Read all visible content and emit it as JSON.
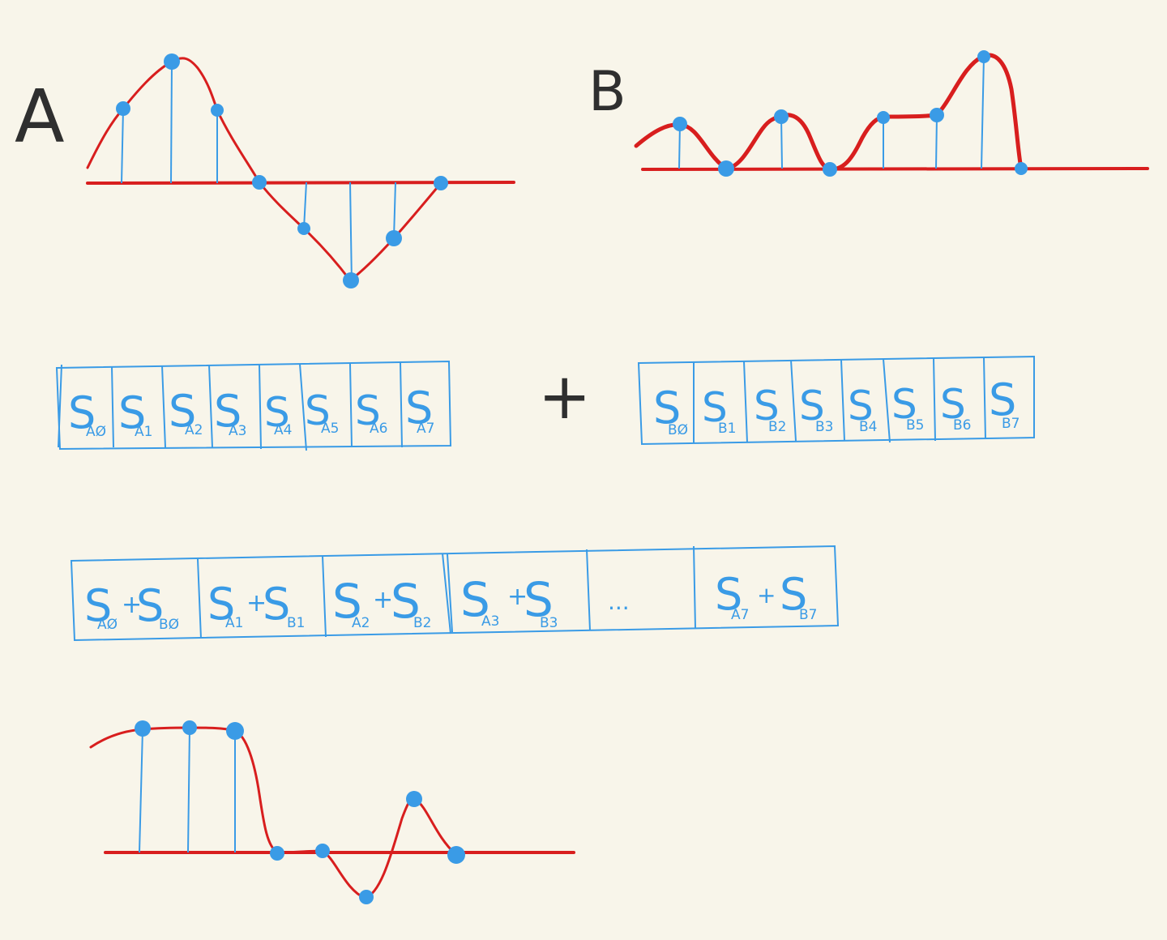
{
  "labels": {
    "signal_a": "A",
    "signal_b": "B",
    "plus": "+",
    "ellipsis": "..."
  },
  "colors": {
    "background": "#f8f5ea",
    "curve": "#d81e1e",
    "samples": "#3a9be6",
    "ink": "#2f2f2f"
  },
  "array_a": [
    {
      "main": "S",
      "sub": "AØ"
    },
    {
      "main": "S",
      "sub": "A1"
    },
    {
      "main": "S",
      "sub": "A2"
    },
    {
      "main": "S",
      "sub": "A3"
    },
    {
      "main": "S",
      "sub": "A4"
    },
    {
      "main": "S",
      "sub": "A5"
    },
    {
      "main": "S",
      "sub": "A6"
    },
    {
      "main": "S",
      "sub": "A7"
    }
  ],
  "array_b": [
    {
      "main": "S",
      "sub": "BØ"
    },
    {
      "main": "S",
      "sub": "B1"
    },
    {
      "main": "S",
      "sub": "B2"
    },
    {
      "main": "S",
      "sub": "B3"
    },
    {
      "main": "S",
      "sub": "B4"
    },
    {
      "main": "S",
      "sub": "B5"
    },
    {
      "main": "S",
      "sub": "B6"
    },
    {
      "main": "S",
      "sub": "B7"
    }
  ],
  "array_sum": [
    {
      "a": "S",
      "a_sub": "AØ",
      "op": "+",
      "b": "S",
      "b_sub": "BØ"
    },
    {
      "a": "S",
      "a_sub": "A1",
      "op": "+",
      "b": "S",
      "b_sub": "B1"
    },
    {
      "a": "S",
      "a_sub": "A2",
      "op": "+",
      "b": "S",
      "b_sub": "B2"
    },
    {
      "a": "S",
      "a_sub": "A3",
      "op": "+",
      "b": "S",
      "b_sub": "B3"
    },
    {
      "ellipsis": "..."
    },
    {
      "a": "S",
      "a_sub": "A7",
      "op": "+",
      "b": "S",
      "b_sub": "B7"
    }
  ]
}
